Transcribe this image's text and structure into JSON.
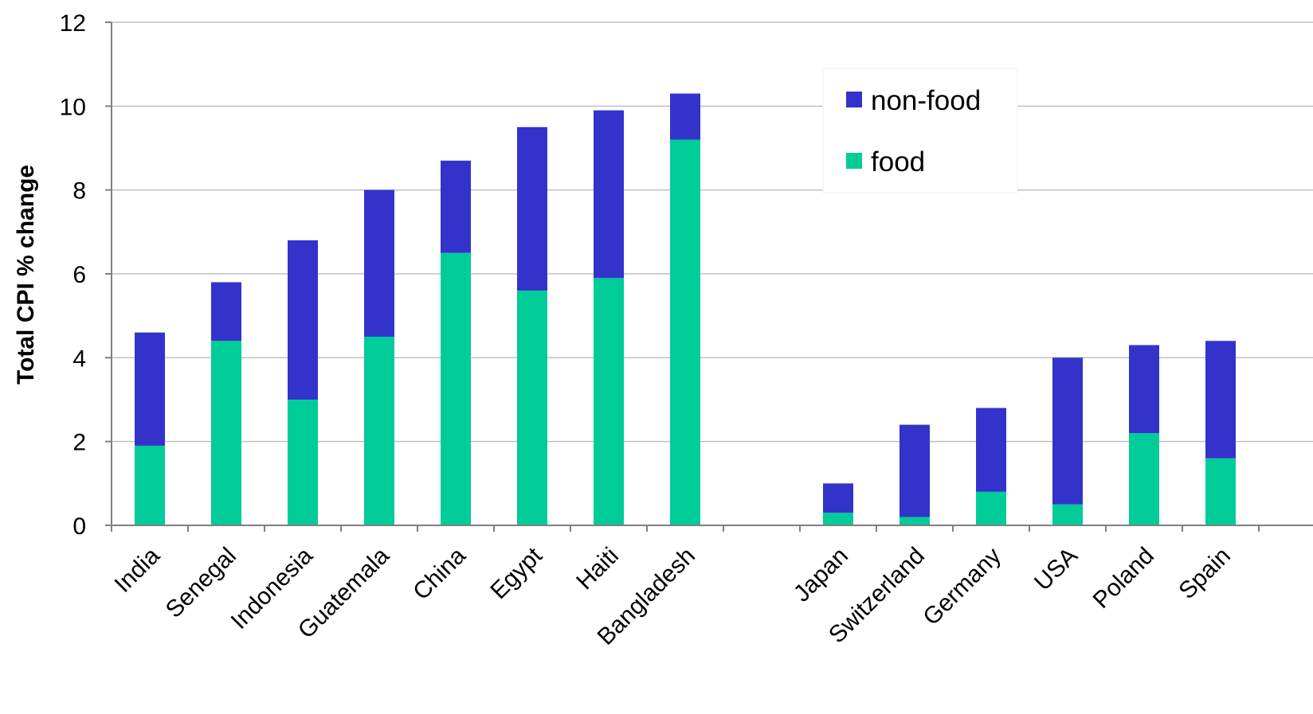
{
  "chart_data": {
    "type": "bar",
    "stacked": true,
    "categories": [
      "India",
      "Senegal",
      "Indonesia",
      "Guatemala",
      "China",
      "Egypt",
      "Haiti",
      "Bangladesh",
      "",
      "Japan",
      "Switzerland",
      "Germany",
      "USA",
      "Poland",
      "Spain"
    ],
    "series": [
      {
        "name": "food",
        "color": "#00CC99",
        "values": [
          1.9,
          4.4,
          3.0,
          4.5,
          6.5,
          5.6,
          5.9,
          9.2,
          null,
          0.3,
          0.2,
          0.8,
          0.5,
          2.2,
          1.6
        ]
      },
      {
        "name": "non-food",
        "color": "#3333CC",
        "values": [
          2.7,
          1.4,
          3.8,
          3.5,
          2.2,
          3.9,
          4.0,
          1.1,
          null,
          0.7,
          2.2,
          2.0,
          3.5,
          2.1,
          2.8
        ]
      }
    ],
    "title": "",
    "xlabel": "",
    "ylabel": "Total CPI % change",
    "ylim": [
      0,
      12
    ],
    "yticks": [
      "0",
      "2",
      "4",
      "6",
      "8",
      "10",
      "12"
    ],
    "grid": true,
    "legend_position": "top-right",
    "legend_order": [
      "non-food",
      "food"
    ]
  }
}
